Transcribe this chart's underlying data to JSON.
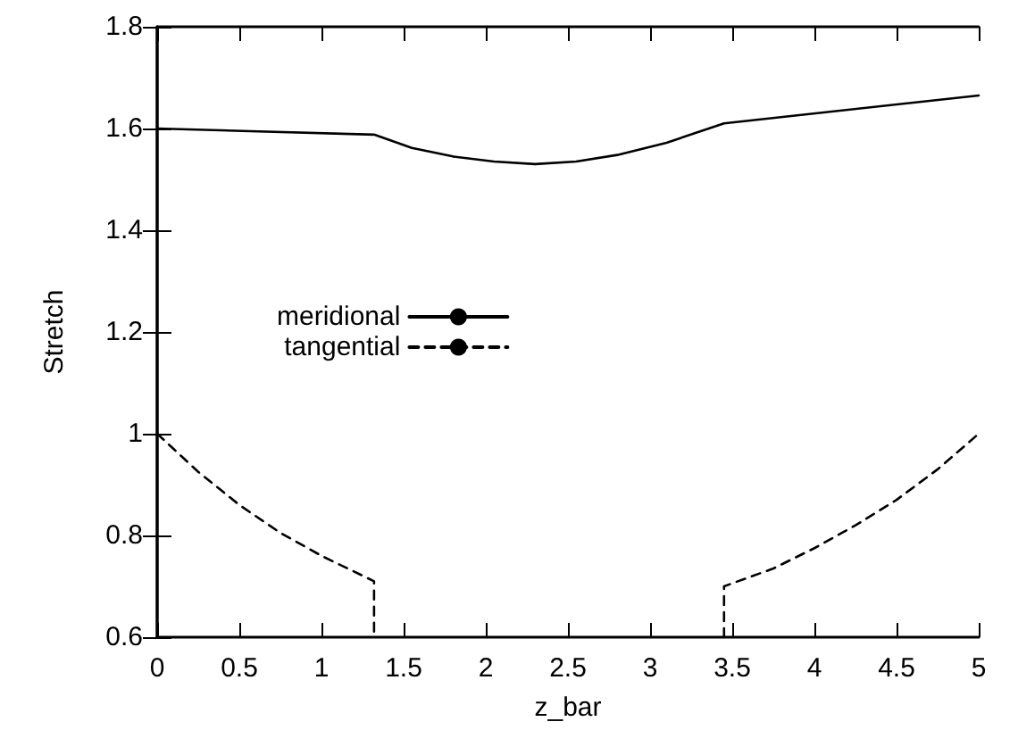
{
  "chart_data": {
    "type": "line",
    "xlabel": "z_bar",
    "ylabel": "Stretch",
    "xlim": [
      0,
      5
    ],
    "ylim": [
      0.6,
      1.8
    ],
    "xticks": [
      0,
      0.5,
      1,
      1.5,
      2,
      2.5,
      3,
      3.5,
      4,
      4.5,
      5
    ],
    "yticks": [
      0.6,
      0.8,
      1,
      1.2,
      1.4,
      1.6,
      1.8
    ],
    "grid": false,
    "legend": "left",
    "marker": "none",
    "series": [
      {
        "name": "meridional",
        "color": "#000000",
        "line_style": "solid",
        "x": [
          0,
          1.32,
          1.55,
          1.8,
          2.05,
          2.3,
          2.55,
          2.8,
          3.1,
          3.45,
          5
        ],
        "values": [
          1.6,
          1.588,
          1.562,
          1.545,
          1.535,
          1.53,
          1.535,
          1.548,
          1.572,
          1.61,
          1.665
        ]
      },
      {
        "name": "tangential",
        "color": "#000000",
        "line_style": "dashed",
        "x": [
          0,
          0.25,
          0.5,
          0.75,
          1,
          1.32,
          1.32,
          2.4,
          3.45,
          3.45,
          3.75,
          4,
          4.25,
          4.5,
          4.75,
          5
        ],
        "values": [
          1,
          0.925,
          0.86,
          0.805,
          0.76,
          0.71,
          0.6,
          null,
          0.6,
          0.7,
          0.735,
          0.775,
          0.82,
          0.87,
          0.93,
          1
        ]
      }
    ]
  }
}
